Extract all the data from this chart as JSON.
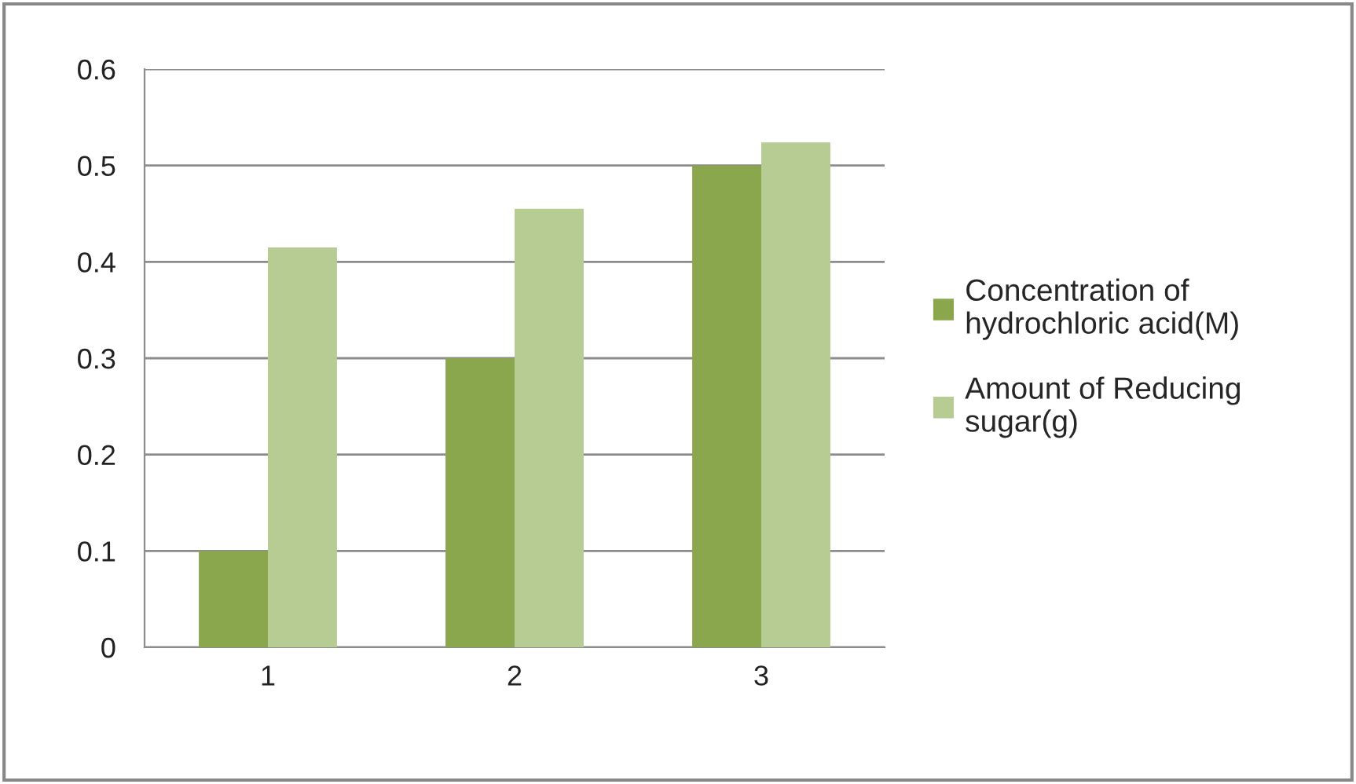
{
  "chart_data": {
    "type": "bar",
    "categories": [
      "1",
      "2",
      "3"
    ],
    "series": [
      {
        "name": "Concentration of hydrochloric acid(M)",
        "color": "#8aa74e",
        "values": [
          0.1,
          0.3,
          0.5
        ]
      },
      {
        "name": "Amount of Reducing sugar(g)",
        "color": "#b7cc93",
        "values": [
          0.415,
          0.455,
          0.524
        ]
      }
    ],
    "ylim": [
      0,
      0.6
    ],
    "yticks": [
      0,
      0.1,
      0.2,
      0.3,
      0.4,
      0.5,
      0.6
    ],
    "grid": "y",
    "legend": "right"
  }
}
